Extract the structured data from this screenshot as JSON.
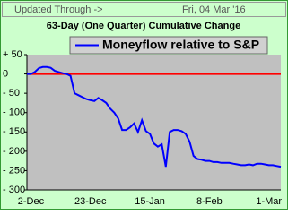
{
  "header": {
    "label": "Updated Through ->",
    "date": "Fri, 04 Mar '16"
  },
  "chart_data": {
    "type": "line",
    "title": "63-Day (One Quarter) Cumulative Change",
    "categories": [
      null,
      "2-Dec",
      null,
      null,
      null,
      null,
      null,
      null,
      null,
      null,
      null,
      null,
      null,
      null,
      null,
      null,
      "23-Dec",
      null,
      null,
      null,
      null,
      null,
      null,
      null,
      null,
      null,
      null,
      null,
      null,
      null,
      null,
      "15-Jan",
      null,
      null,
      null,
      null,
      null,
      null,
      null,
      null,
      null,
      null,
      null,
      null,
      null,
      null,
      "8-Feb",
      null,
      null,
      null,
      null,
      null,
      null,
      null,
      null,
      null,
      null,
      null,
      null,
      null,
      null,
      "1-Mar",
      null,
      null,
      null
    ],
    "series": [
      {
        "name": "Moneyflow relative to S&P",
        "color": "#0000ff",
        "values": [
          0,
          0,
          5,
          15,
          18,
          18,
          16,
          8,
          5,
          2,
          0,
          -5,
          -50,
          -55,
          -60,
          -65,
          -68,
          -70,
          -62,
          -68,
          -75,
          -90,
          -100,
          -115,
          -145,
          -145,
          -138,
          -128,
          -150,
          -120,
          -148,
          -155,
          -180,
          -188,
          -182,
          -240,
          -150,
          -145,
          -145,
          -148,
          -155,
          -175,
          -212,
          -220,
          -222,
          -225,
          -225,
          -228,
          -228,
          -230,
          -230,
          -230,
          -232,
          -234,
          -236,
          -236,
          -234,
          -236,
          -232,
          -232,
          -234,
          -236,
          -236,
          -238,
          -240
        ]
      }
    ],
    "ylim": [
      -300,
      50
    ],
    "yticks": [
      {
        "value": 50,
        "label": "+ 50"
      },
      0,
      {
        "value": -50,
        "label": "- 50"
      },
      {
        "value": -100,
        "label": "- 100"
      },
      {
        "value": -150,
        "label": "- 150"
      },
      {
        "value": -200,
        "label": "- 200"
      },
      {
        "value": -250,
        "label": "- 250"
      },
      {
        "value": -300,
        "label": "- 300"
      }
    ],
    "reference_line": {
      "value": 0,
      "color": "#ff0000"
    },
    "legend": "top"
  }
}
